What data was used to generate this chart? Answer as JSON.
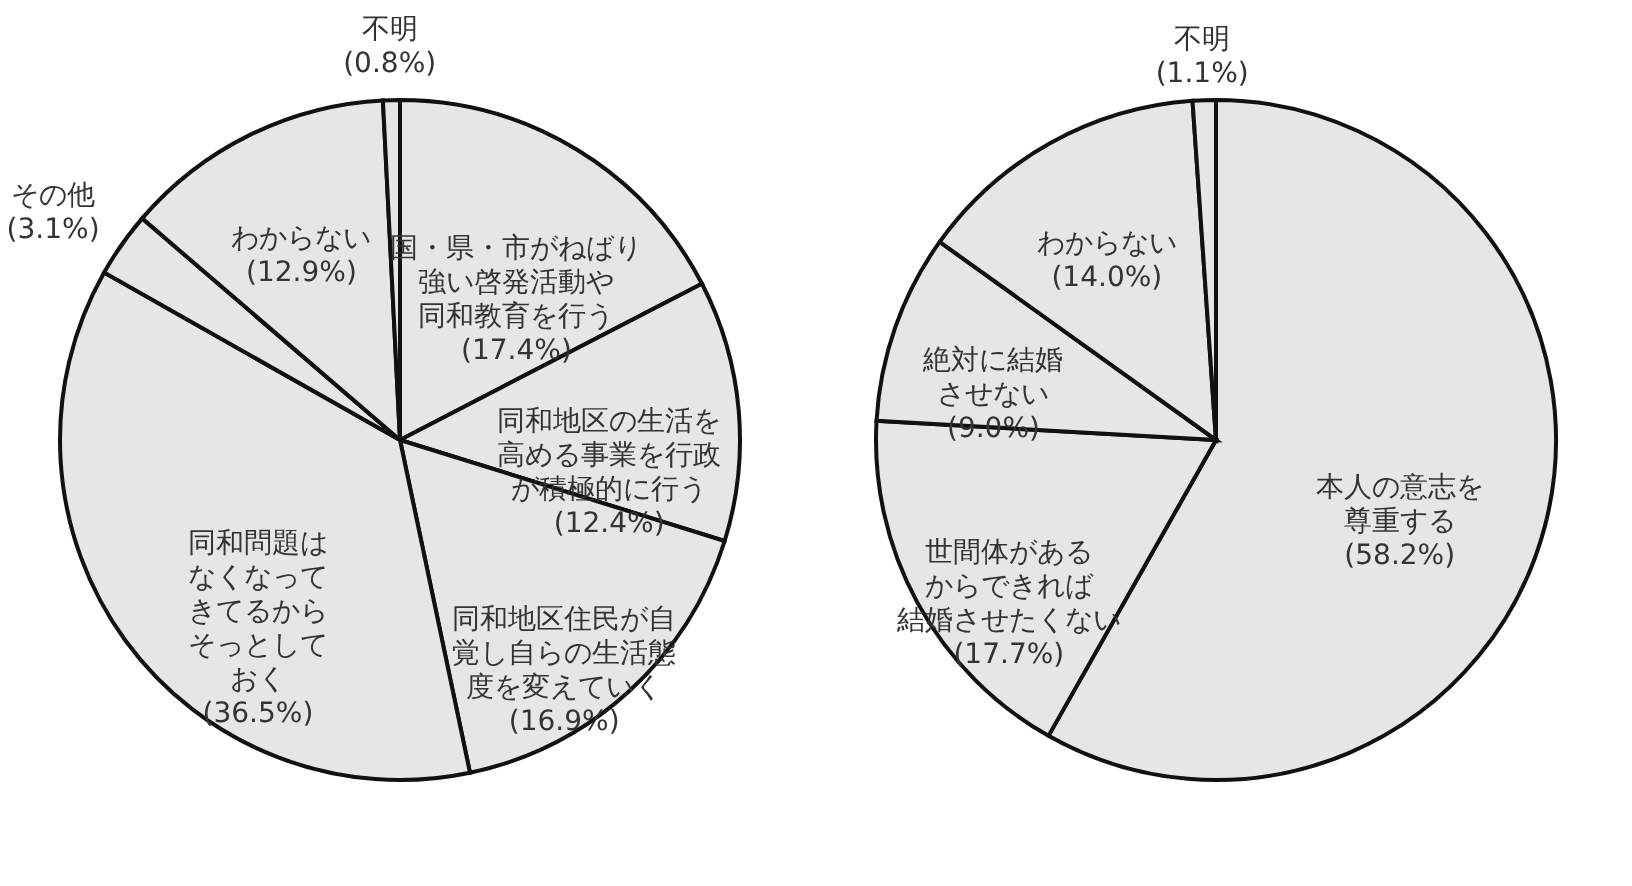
{
  "chart_data": [
    {
      "type": "pie",
      "categories": [
        "国・県・市がねばり強い啓発活動や同和教育を行う",
        "同和地区の生活を高める事業を行政が積極的に行う",
        "同和地区住民が自覚し自らの生活態度を変えていく",
        "同和問題はなくなってきてるからそっとしておく",
        "その他",
        "わからない",
        "不明"
      ],
      "values": [
        17.4,
        12.4,
        16.9,
        36.5,
        3.1,
        12.9,
        0.8
      ],
      "value_labels": [
        "(17.4%)",
        "(12.4%)",
        "(16.9%)",
        "(36.5%)",
        "(3.1%)",
        "(12.9%)",
        "(0.8%)"
      ],
      "colors": [
        "#e6e6e6",
        "#e6e6e6",
        "#e6e6e6",
        "#e6e6e6",
        "#e6e6e6",
        "#e6e6e6",
        "#e6e6e6"
      ]
    },
    {
      "type": "pie",
      "categories": [
        "本人の意志を尊重する",
        "世間体があるからできれば結婚させたくない",
        "絶対に結婚させない",
        "わからない",
        "不明"
      ],
      "values": [
        58.2,
        17.7,
        9.0,
        14.0,
        1.1
      ],
      "value_labels": [
        "(58.2%)",
        "(17.7%)",
        "(9.0%)",
        "(14.0%)",
        "(1.1%)"
      ],
      "colors": [
        "#e6e6e6",
        "#e6e6e6",
        "#e6e6e6",
        "#e6e6e6",
        "#e6e6e6"
      ]
    }
  ]
}
